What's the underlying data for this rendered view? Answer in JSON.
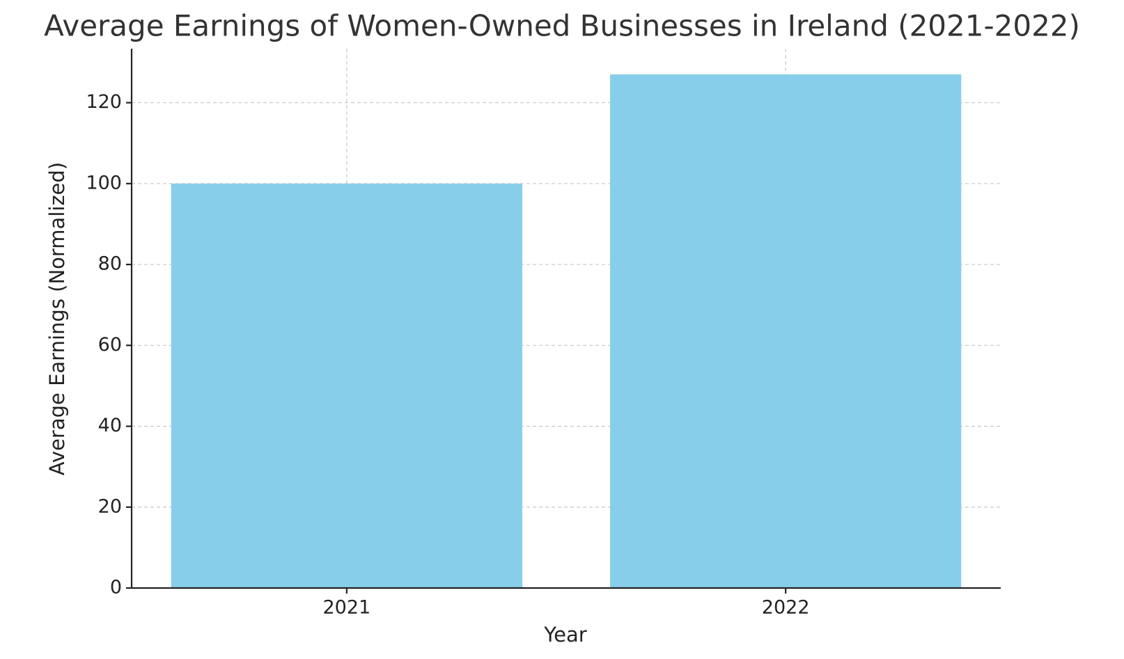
{
  "chart_data": {
    "type": "bar",
    "title": "Average Earnings of Women-Owned Businesses in Ireland (2021-2022)",
    "x_label": "Year",
    "y_label": "Average Earnings (Normalized)",
    "categories": [
      "2021",
      "2022"
    ],
    "values": [
      100,
      127
    ],
    "color": "#87ceeb",
    "ylim": [
      0,
      133.35
    ],
    "yticks": [
      0,
      20,
      40,
      60,
      80,
      100,
      120
    ],
    "grid": true
  }
}
